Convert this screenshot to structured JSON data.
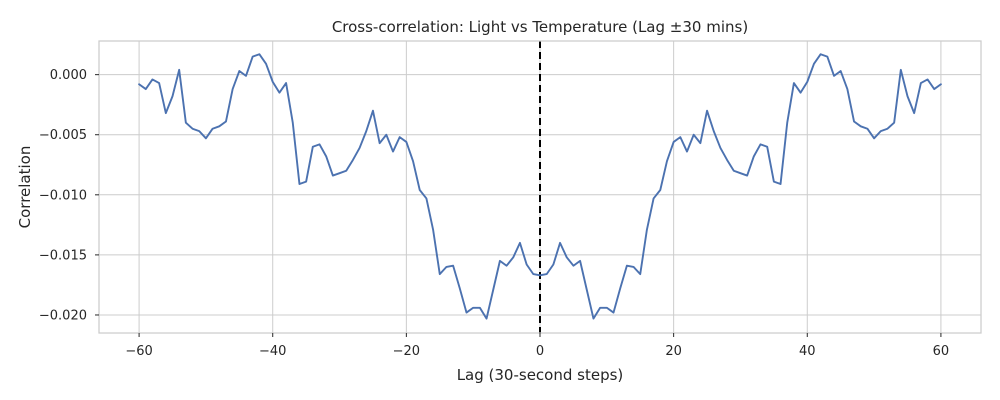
{
  "chart_data": {
    "type": "line",
    "title": "Cross-correlation: Light vs Temperature (Lag ±30 mins)",
    "xlabel": "Lag (30-second steps)",
    "ylabel": "Correlation",
    "xlim": [
      -66,
      66
    ],
    "ylim": [
      -0.0215,
      0.0028
    ],
    "xticks": [
      -60,
      -40,
      -20,
      0,
      20,
      40,
      60
    ],
    "xtick_labels": [
      "−60",
      "−40",
      "−20",
      "0",
      "20",
      "40",
      "60"
    ],
    "yticks": [
      0.0,
      -0.005,
      -0.01,
      -0.015,
      -0.02
    ],
    "ytick_labels": [
      "0.000",
      "−0.005",
      "−0.010",
      "−0.015",
      "−0.020"
    ],
    "grid": true,
    "vline": {
      "x": 0,
      "style": "dashed",
      "color": "#000000"
    },
    "series": [
      {
        "color": "#4c72b0",
        "x": [
          -60,
          -59,
          -58,
          -57,
          -56,
          -55,
          -54,
          -53,
          -52,
          -51,
          -50,
          -49,
          -48,
          -47,
          -46,
          -45,
          -44,
          -43,
          -42,
          -41,
          -40,
          -39,
          -38,
          -37,
          -36,
          -35,
          -34,
          -33,
          -32,
          -31,
          -30,
          -29,
          -28,
          -27,
          -26,
          -25,
          -24,
          -23,
          -22,
          -21,
          -20,
          -19,
          -18,
          -17,
          -16,
          -15,
          -14,
          -13,
          -12,
          -11,
          -10,
          -9,
          -8,
          -7,
          -6,
          -5,
          -4,
          -3,
          -2,
          -1,
          0,
          1,
          2,
          3,
          4,
          5,
          6,
          7,
          8,
          9,
          10,
          11,
          12,
          13,
          14,
          15,
          16,
          17,
          18,
          19,
          20,
          21,
          22,
          23,
          24,
          25,
          26,
          27,
          28,
          29,
          30,
          31,
          32,
          33,
          34,
          35,
          36,
          37,
          38,
          39,
          40,
          41,
          42,
          43,
          44,
          45,
          46,
          47,
          48,
          49,
          50,
          51,
          52,
          53,
          54,
          55,
          56,
          57,
          58,
          59,
          60
        ],
        "y": [
          -0.0008,
          -0.0012,
          -0.0004,
          -0.0007,
          -0.0032,
          -0.0018,
          0.0004,
          -0.004,
          -0.0045,
          -0.0047,
          -0.0053,
          -0.0045,
          -0.0043,
          -0.0039,
          -0.0012,
          0.0003,
          -0.0001,
          0.0015,
          0.0017,
          0.0009,
          -0.0006,
          -0.0015,
          -0.0007,
          -0.004,
          -0.0091,
          -0.0089,
          -0.006,
          -0.0058,
          -0.0068,
          -0.0084,
          -0.0082,
          -0.008,
          -0.0071,
          -0.0061,
          -0.0047,
          -0.003,
          -0.0057,
          -0.005,
          -0.0064,
          -0.0052,
          -0.0056,
          -0.0072,
          -0.0096,
          -0.0103,
          -0.0129,
          -0.0166,
          -0.016,
          -0.0159,
          -0.0178,
          -0.0198,
          -0.0194,
          -0.0194,
          -0.0203,
          -0.0179,
          -0.0155,
          -0.0159,
          -0.0152,
          -0.014,
          -0.0158,
          -0.0166,
          -0.0167,
          -0.0166,
          -0.0158,
          -0.014,
          -0.0152,
          -0.0159,
          -0.0155,
          -0.0179,
          -0.0203,
          -0.0194,
          -0.0194,
          -0.0198,
          -0.0178,
          -0.0159,
          -0.016,
          -0.0166,
          -0.0129,
          -0.0103,
          -0.0096,
          -0.0072,
          -0.0056,
          -0.0052,
          -0.0064,
          -0.005,
          -0.0057,
          -0.003,
          -0.0047,
          -0.0061,
          -0.0071,
          -0.008,
          -0.0082,
          -0.0084,
          -0.0068,
          -0.0058,
          -0.006,
          -0.0089,
          -0.0091,
          -0.004,
          -0.0007,
          -0.0015,
          -0.0006,
          0.0009,
          0.0017,
          0.0015,
          -0.0001,
          0.0003,
          -0.0012,
          -0.0039,
          -0.0043,
          -0.0045,
          -0.0053,
          -0.0047,
          -0.0045,
          -0.004,
          0.0004,
          -0.0018,
          -0.0032,
          -0.0007,
          -0.0004,
          -0.0012,
          -0.0008
        ]
      }
    ]
  }
}
